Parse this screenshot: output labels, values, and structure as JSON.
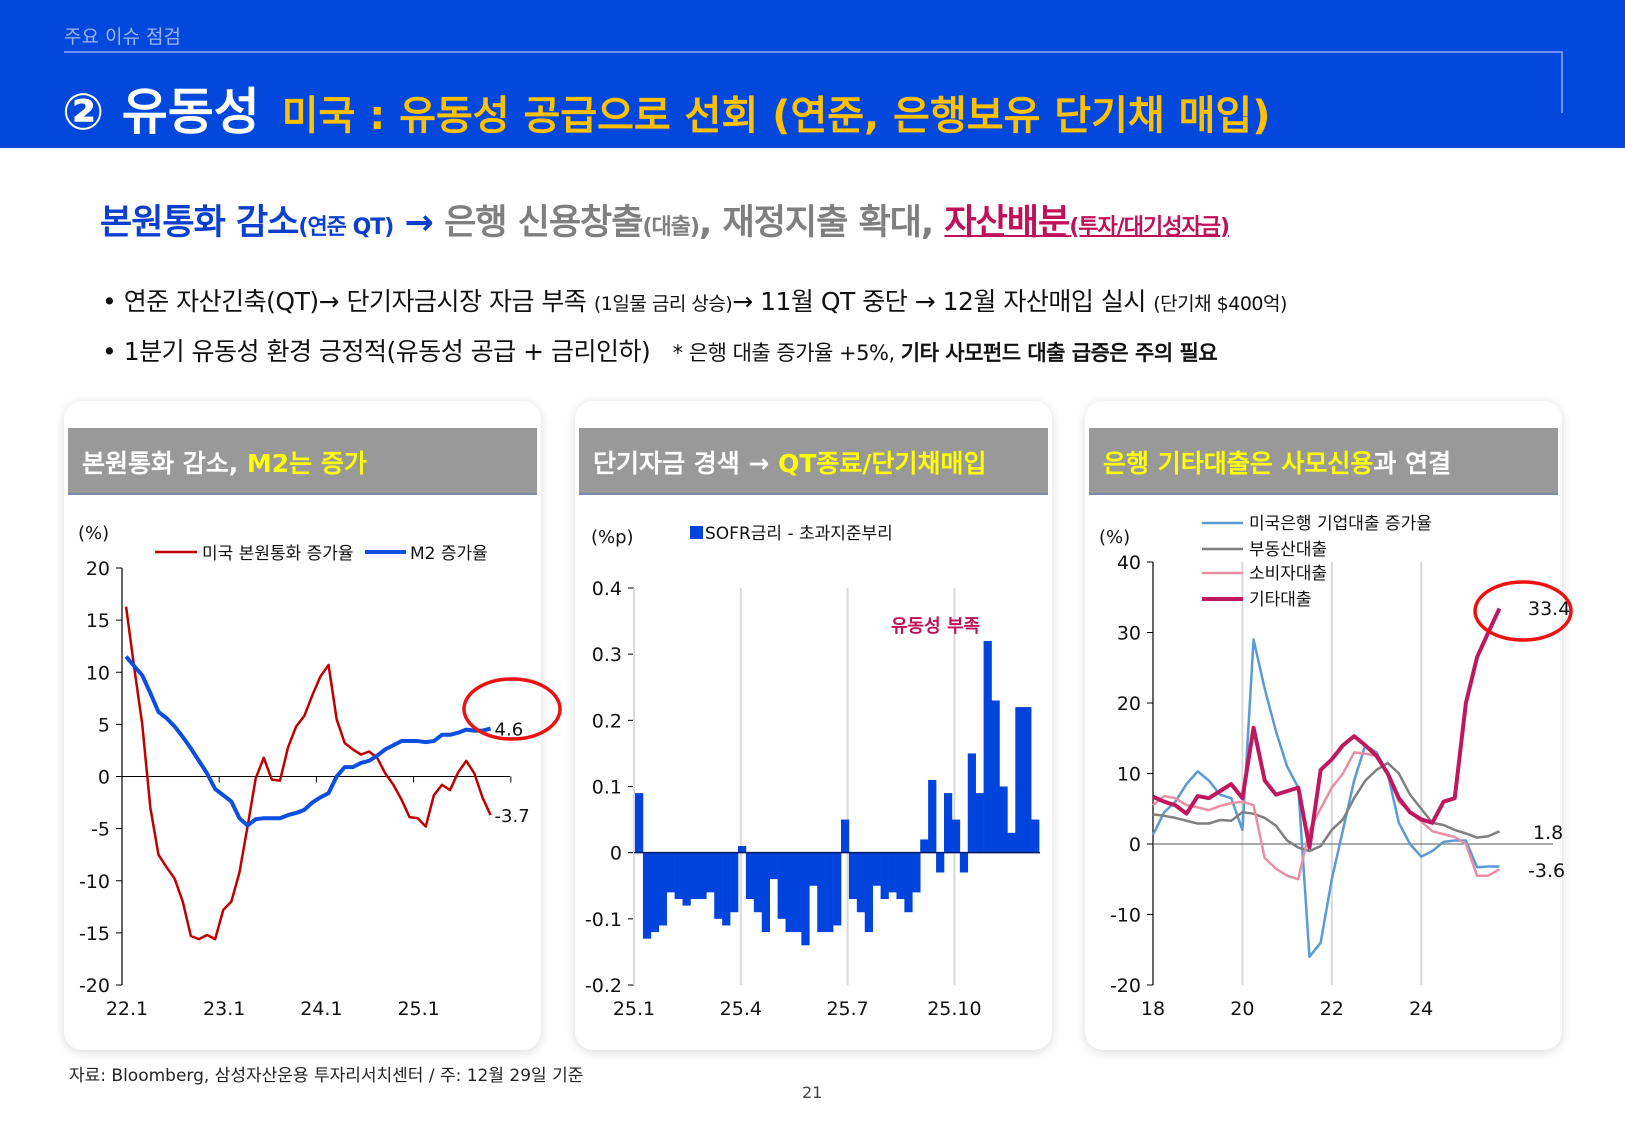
{
  "header": {
    "section": "주요 이슈 점검",
    "title_main": "② 유동성",
    "title_sub": "미국 : 유동성 공급으로 선회 (연준, 은행보유 단기채 매입)"
  },
  "headline": {
    "p1": "본원통화 감소",
    "p1_small": "(연준 QT)",
    "arrow": " → ",
    "p2": "은행 신용창출",
    "p2_small": "(대출)",
    "p3": ", 재정지출 확대, ",
    "p4": "자산배분",
    "p4_small": "(투자/대기성자금)"
  },
  "bullets": [
    {
      "a": "연준 자산긴축(QT)→ 단기자금시장 자금 부족 ",
      "a_small": "(1일물 금리 상승)",
      "b": "→ 11월 QT 중단 → 12월 자산매입 실시 ",
      "b_small": "(단기채 $400억)"
    },
    {
      "a": "1분기 유동성 환경 긍정적(유동성 공급 + 금리인하)",
      "note": "* 은행 대출 증가율 +5%, ",
      "note_bold": "기타 사모펀드 대출 급증은 주의 필요"
    }
  ],
  "colors": {
    "band": "#0348dc",
    "title_accent": "#ffc000",
    "red": "#c00000",
    "blue": "#0a4fe0",
    "bar": "#0044dd",
    "loan_ci": "#5b9bd5",
    "loan_re": "#7f7f7f",
    "loan_consumer": "#e88fa5",
    "loan_other": "#c0185f",
    "annotation": "#ee1111"
  },
  "cards": [
    {
      "title_white": "본원통화 감소, ",
      "title_yellow": "M2는 증가"
    },
    {
      "title_white": "단기자금 경색 → ",
      "title_yellow": "QT종료/단기채매입"
    },
    {
      "title_yellow": "은행 기타대출은 사모신용",
      "title_white": "과 연결"
    }
  ],
  "chart_data": [
    {
      "type": "line",
      "ylabel": "(%)",
      "ylim": [
        -20,
        20
      ],
      "yticks": [
        "20",
        "15",
        "10",
        "5",
        "0",
        "-5",
        "-10",
        "-15",
        "-20"
      ],
      "xticks": [
        "22.1",
        "23.1",
        "24.1",
        "25.1"
      ],
      "frequency": "monthly",
      "start": "22.1",
      "legend": "top",
      "series": [
        {
          "name": "미국 본원통화 증가율",
          "color": "#c00000",
          "end_label": "-3.7",
          "values": [
            16.3,
            10.5,
            5,
            -3,
            -7.5,
            -8.7,
            -9.8,
            -12,
            -15.3,
            -15.6,
            -15.2,
            -15.6,
            -12.8,
            -12,
            -9.2,
            -4.8,
            -0.2,
            1.8,
            -0.3,
            -0.4,
            2.8,
            4.8,
            5.8,
            7.8,
            9.6,
            10.7,
            5.5,
            3.2,
            2.6,
            2.1,
            2.4,
            1.8,
            0.3,
            -0.8,
            -2.2,
            -3.9,
            -4,
            -4.8,
            -1.8,
            -0.8,
            -1.3,
            0.4,
            1.5,
            0.3,
            -2,
            -3.7
          ]
        },
        {
          "name": "M2 증가율",
          "color": "#0a4fe0",
          "end_label": "4.6",
          "values": [
            11.5,
            10.6,
            9.7,
            8,
            6.2,
            5.6,
            4.8,
            3.8,
            2.7,
            1.5,
            0.3,
            -1.2,
            -1.8,
            -2.4,
            -4,
            -4.7,
            -4.1,
            -4,
            -4,
            -4,
            -3.7,
            -3.5,
            -3.2,
            -2.5,
            -2,
            -1.6,
            0,
            0.9,
            0.9,
            1.3,
            1.5,
            2,
            2.6,
            3,
            3.4,
            3.4,
            3.4,
            3.3,
            3.4,
            4,
            4,
            4.2,
            4.5,
            4.4,
            4.4,
            4.6
          ]
        }
      ]
    },
    {
      "type": "bar",
      "ylabel": "(%p)",
      "ylim": [
        -0.2,
        0.4
      ],
      "yticks": [
        "0.4",
        "0.3",
        "0.2",
        "0.1",
        "0",
        "-0.1",
        "-0.2"
      ],
      "xticks": [
        "25.1",
        "25.4",
        "25.7",
        "25.10"
      ],
      "frequency": "weekly",
      "start": "25.1",
      "legend": "top",
      "annotation": "유동성 부족",
      "series": [
        {
          "name": "SOFR금리 - 초과지준부리",
          "color": "#0044dd",
          "values": [
            0.09,
            -0.13,
            -0.12,
            -0.11,
            -0.06,
            -0.07,
            -0.08,
            -0.07,
            -0.07,
            -0.06,
            -0.1,
            -0.11,
            -0.09,
            0.01,
            -0.07,
            -0.09,
            -0.12,
            -0.04,
            -0.1,
            -0.12,
            -0.12,
            -0.14,
            -0.05,
            -0.12,
            -0.12,
            -0.11,
            0.05,
            -0.07,
            -0.09,
            -0.12,
            -0.05,
            -0.07,
            -0.06,
            -0.07,
            -0.09,
            -0.06,
            0.02,
            0.11,
            -0.03,
            0.09,
            0.05,
            -0.03,
            0.15,
            0.09,
            0.32,
            0.23,
            0.1,
            0.03,
            0.22,
            0.22,
            0.05
          ]
        }
      ]
    },
    {
      "type": "line",
      "ylabel": "(%)",
      "ylim": [
        -20,
        40
      ],
      "yticks": [
        "40",
        "30",
        "20",
        "10",
        "0",
        "-10",
        "-20"
      ],
      "xticks": [
        "18",
        "20",
        "22",
        "24"
      ],
      "frequency": "quarterly",
      "start": "18",
      "legend": "top",
      "series": [
        {
          "name": "미국은행 기업대출 증가율",
          "color": "#5b9bd5",
          "values": [
            1.3,
            4.5,
            6,
            8.5,
            10.3,
            9,
            7,
            6.5,
            2,
            29,
            22,
            16,
            11,
            8,
            -16,
            -14,
            -5,
            2,
            9,
            14,
            13,
            10,
            3,
            0,
            -1.8,
            -1,
            0.3,
            0.5,
            0.5,
            -3.3,
            -3.2,
            -3.2
          ]
        },
        {
          "name": "부동산대출",
          "color": "#7f7f7f",
          "end_label": "1.8",
          "values": [
            4.2,
            4,
            3.7,
            3.3,
            2.9,
            2.9,
            3.4,
            3.3,
            4.5,
            4.3,
            3.7,
            2.6,
            0.5,
            -0.5,
            -1,
            -0.3,
            2,
            3.5,
            6.5,
            9,
            10.5,
            11.5,
            10,
            7,
            5,
            3,
            2.7,
            2,
            1.5,
            0.9,
            1.1,
            1.8
          ]
        },
        {
          "name": "소비자대출",
          "color": "#e88fa5",
          "end_label": "-3.6",
          "values": [
            5.5,
            6.8,
            6.5,
            5.5,
            5.2,
            4.8,
            5.4,
            5.8,
            6,
            5.5,
            -2,
            -3.5,
            -4.5,
            -5,
            2,
            5,
            8,
            10,
            13,
            12.8,
            12.5,
            10,
            6,
            4.5,
            3.2,
            1.8,
            1.4,
            1,
            0,
            -4.5,
            -4.5,
            -3.6
          ]
        },
        {
          "name": "기타대출",
          "color": "#c0185f",
          "end_label": "33.4",
          "values": [
            6.7,
            6,
            5.5,
            4.3,
            6.8,
            6.5,
            7.5,
            8.5,
            6.5,
            16.5,
            9,
            7,
            7.5,
            8,
            -0.5,
            10.5,
            12,
            14,
            15.3,
            14,
            12.5,
            10,
            6.5,
            4.5,
            3.5,
            3,
            6,
            6.5,
            20,
            26.5,
            30,
            33.4
          ]
        }
      ]
    }
  ],
  "footer": {
    "source": "자료: Bloomberg, 삼성자산운용 투자리서치센터 / 주: 12월 29일 기준",
    "page": "21"
  }
}
